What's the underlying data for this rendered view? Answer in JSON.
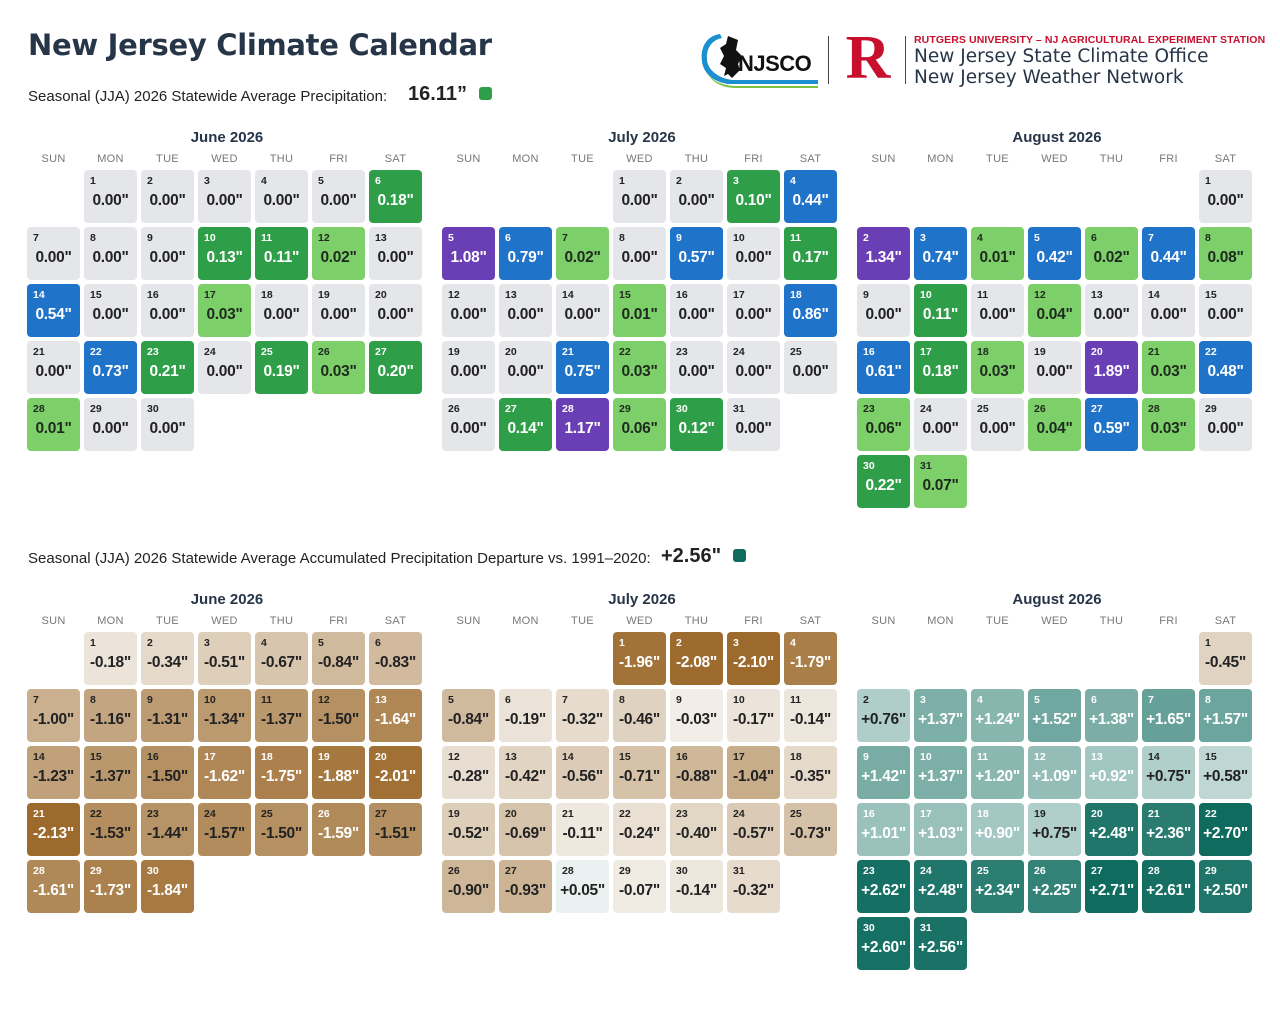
{
  "header": {
    "title": "New Jersey Climate Calendar",
    "logo_njsco": "NJSCO",
    "rutgers_tagline": "RUTGERS UNIVERSITY – NJ AGRICULTURAL EXPERIMENT STATION",
    "rutgers_logo": "R",
    "office_line1": "New Jersey State Climate Office",
    "office_line2": "New Jersey Weather Network"
  },
  "precip_section": {
    "label": "Seasonal (JJA) 2026 Statewide Average Precipitation:",
    "value": "16.11”",
    "swatch_color": "#2e9e48"
  },
  "departure_section": {
    "label": "Seasonal (JJA) 2026 Statewide Average Accumulated Precipitation Departure vs. 1991–2020:",
    "value": "+2.56\"",
    "swatch_color": "#0e6b5e"
  },
  "weekdays": [
    "SUN",
    "MON",
    "TUE",
    "WED",
    "THU",
    "FRI",
    "SAT"
  ],
  "precip_calendars": [
    {
      "title": "June 2026",
      "start_dow": 1,
      "values": [
        "0.00\"",
        "0.00\"",
        "0.00\"",
        "0.00\"",
        "0.00\"",
        "0.18\"",
        "0.00\"",
        "0.00\"",
        "0.00\"",
        "0.13\"",
        "0.11\"",
        "0.02\"",
        "0.00\"",
        "0.54\"",
        "0.00\"",
        "0.00\"",
        "0.03\"",
        "0.00\"",
        "0.00\"",
        "0.00\"",
        "0.00\"",
        "0.73\"",
        "0.21\"",
        "0.00\"",
        "0.19\"",
        "0.03\"",
        "0.20\"",
        "0.01\"",
        "0.00\"",
        "0.00\""
      ]
    },
    {
      "title": "July 2026",
      "start_dow": 3,
      "values": [
        "0.00\"",
        "0.00\"",
        "0.10\"",
        "0.44\"",
        "1.08\"",
        "0.79\"",
        "0.02\"",
        "0.00\"",
        "0.57\"",
        "0.00\"",
        "0.17\"",
        "0.00\"",
        "0.00\"",
        "0.00\"",
        "0.01\"",
        "0.00\"",
        "0.00\"",
        "0.86\"",
        "0.00\"",
        "0.00\"",
        "0.75\"",
        "0.03\"",
        "0.00\"",
        "0.00\"",
        "0.00\"",
        "0.00\"",
        "0.14\"",
        "1.17\"",
        "0.06\"",
        "0.12\"",
        "0.00\""
      ]
    },
    {
      "title": "August 2026",
      "start_dow": 6,
      "values": [
        "0.00\"",
        "1.34\"",
        "0.74\"",
        "0.01\"",
        "0.42\"",
        "0.02\"",
        "0.44\"",
        "0.08\"",
        "0.00\"",
        "0.11\"",
        "0.00\"",
        "0.04\"",
        "0.00\"",
        "0.00\"",
        "0.00\"",
        "0.61\"",
        "0.18\"",
        "0.03\"",
        "0.00\"",
        "1.89\"",
        "0.03\"",
        "0.48\"",
        "0.06\"",
        "0.00\"",
        "0.00\"",
        "0.04\"",
        "0.59\"",
        "0.03\"",
        "0.00\"",
        "0.22\"",
        "0.07\""
      ]
    }
  ],
  "departure_calendars": [
    {
      "title": "June 2026",
      "start_dow": 1,
      "values": [
        "-0.18\"",
        "-0.34\"",
        "-0.51\"",
        "-0.67\"",
        "-0.84\"",
        "-0.83\"",
        "-1.00\"",
        "-1.16\"",
        "-1.31\"",
        "-1.34\"",
        "-1.37\"",
        "-1.50\"",
        "-1.64\"",
        "-1.23\"",
        "-1.37\"",
        "-1.50\"",
        "-1.62\"",
        "-1.75\"",
        "-1.88\"",
        "-2.01\"",
        "-2.13\"",
        "-1.53\"",
        "-1.44\"",
        "-1.57\"",
        "-1.50\"",
        "-1.59\"",
        "-1.51\"",
        "-1.61\"",
        "-1.73\"",
        "-1.84\""
      ]
    },
    {
      "title": "July 2026",
      "start_dow": 3,
      "values": [
        "-1.96\"",
        "-2.08\"",
        "-2.10\"",
        "-1.79\"",
        "-0.84\"",
        "-0.19\"",
        "-0.32\"",
        "-0.46\"",
        "-0.03\"",
        "-0.17\"",
        "-0.14\"",
        "-0.28\"",
        "-0.42\"",
        "-0.56\"",
        "-0.71\"",
        "-0.88\"",
        "-1.04\"",
        "-0.35\"",
        "-0.52\"",
        "-0.69\"",
        "-0.11\"",
        "-0.24\"",
        "-0.40\"",
        "-0.57\"",
        "-0.73\"",
        "-0.90\"",
        "-0.93\"",
        "+0.05\"",
        "-0.07\"",
        "-0.14\"",
        "-0.32\""
      ]
    },
    {
      "title": "August 2026",
      "start_dow": 6,
      "values": [
        "-0.45\"",
        "+0.76\"",
        "+1.37\"",
        "+1.24\"",
        "+1.52\"",
        "+1.38\"",
        "+1.65\"",
        "+1.57\"",
        "+1.42\"",
        "+1.37\"",
        "+1.20\"",
        "+1.09\"",
        "+0.92\"",
        "+0.75\"",
        "+0.58\"",
        "+1.01\"",
        "+1.03\"",
        "+0.90\"",
        "+0.75\"",
        "+2.48\"",
        "+2.36\"",
        "+2.70\"",
        "+2.62\"",
        "+2.48\"",
        "+2.34\"",
        "+2.25\"",
        "+2.71\"",
        "+2.61\"",
        "+2.50\"",
        "+2.60\"",
        "+2.56\""
      ]
    }
  ]
}
